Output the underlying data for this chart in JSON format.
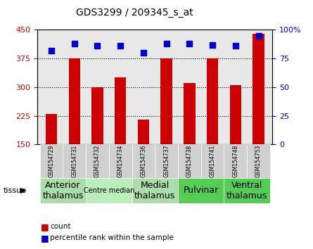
{
  "title": "GDS3299 / 209345_s_at",
  "samples": [
    "GSM154729",
    "GSM154731",
    "GSM154732",
    "GSM154734",
    "GSM154736",
    "GSM154737",
    "GSM154738",
    "GSM154741",
    "GSM154748",
    "GSM154753"
  ],
  "counts": [
    230,
    375,
    300,
    325,
    215,
    375,
    310,
    375,
    305,
    440
  ],
  "percentiles": [
    82,
    88,
    86,
    86,
    80,
    88,
    88,
    87,
    86,
    95
  ],
  "bar_color": "#cc0000",
  "dot_color": "#0000cc",
  "ylim_left": [
    150,
    450
  ],
  "ylim_right": [
    0,
    100
  ],
  "yticks_left": [
    150,
    225,
    300,
    375,
    450
  ],
  "yticks_right": [
    0,
    25,
    50,
    75,
    100
  ],
  "tissue_groups": [
    {
      "label": "Anterior\nthalamus",
      "start": 0,
      "end": 2,
      "color": "#aaddaa",
      "fontsize": 9
    },
    {
      "label": "Centre median",
      "start": 2,
      "end": 4,
      "color": "#bbeebb",
      "fontsize": 7
    },
    {
      "label": "Medial\nthalamus",
      "start": 4,
      "end": 6,
      "color": "#aaddaa",
      "fontsize": 9
    },
    {
      "label": "Pulvinar",
      "start": 6,
      "end": 8,
      "color": "#55cc55",
      "fontsize": 9
    },
    {
      "label": "Ventral\nthalamus",
      "start": 8,
      "end": 10,
      "color": "#55cc55",
      "fontsize": 9
    }
  ],
  "background_color": "#ffffff",
  "plot_bg_color": "#e8e8e8",
  "grid_color": "#000000",
  "tick_label_color_left": "#cc0000",
  "tick_label_color_right": "#0000cc"
}
